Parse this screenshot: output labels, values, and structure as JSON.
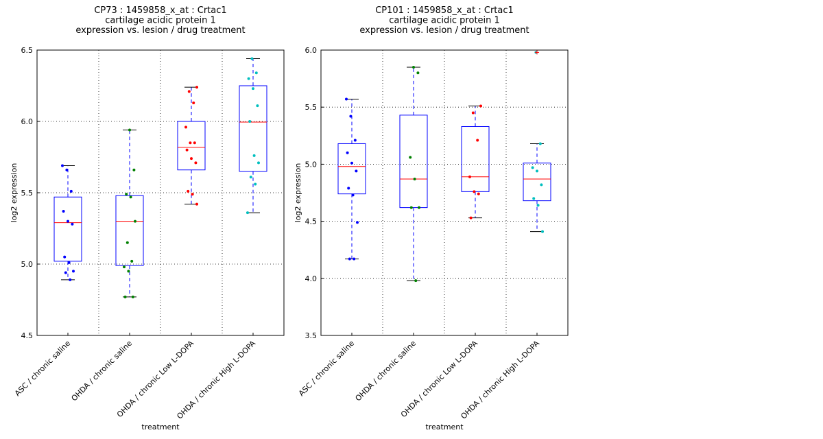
{
  "chart_data": [
    {
      "type": "box",
      "title": [
        "CP73 : 1459858_x_at : Crtac1",
        "cartilage acidic protein 1",
        "expression vs. lesion / drug treatment"
      ],
      "xlabel": "treatment",
      "ylabel": "log2 expression",
      "categories": [
        "ASC / chronic saline",
        "OHDA / chronic saline",
        "OHDA / chronic Low L-DOPA",
        "OHDA / chronic High L-DOPA"
      ],
      "ylim": [
        4.5,
        6.5
      ],
      "yticks": [
        4.5,
        {
          "value": 5,
          "label": "5.0"
        },
        5.5,
        {
          "value": 6,
          "label": "6.0"
        },
        6.5
      ],
      "grid": true,
      "box_color": "#0000ff",
      "median_color": "#ff0000",
      "boxes": [
        {
          "whisker_low": 4.89,
          "q1": 5.02,
          "median": 5.29,
          "q3": 5.47,
          "whisker_high": 5.69,
          "color": "#0000ff",
          "points": [
            5.69,
            5.66,
            5.51,
            5.37,
            5.3,
            5.28,
            5.05,
            5.01,
            4.95,
            4.94,
            4.89
          ],
          "fliers": []
        },
        {
          "whisker_low": 4.77,
          "q1": 4.99,
          "median": 5.3,
          "q3": 5.48,
          "whisker_high": 5.94,
          "color": "#008000",
          "points": [
            5.94,
            5.66,
            5.49,
            5.47,
            5.3,
            5.15,
            5.02,
            4.98,
            4.95,
            4.77,
            4.77
          ],
          "fliers": []
        },
        {
          "whisker_low": 5.42,
          "q1": 5.66,
          "median": 5.82,
          "q3": 6.0,
          "whisker_high": 6.24,
          "color": "#ff0000",
          "points": [
            6.24,
            6.21,
            6.13,
            5.96,
            5.85,
            5.85,
            5.8,
            5.74,
            5.71,
            5.51,
            5.49,
            5.42
          ],
          "fliers": []
        },
        {
          "whisker_low": 5.36,
          "q1": 5.65,
          "median": 5.995,
          "q3": 6.25,
          "whisker_high": 6.44,
          "color": "#00bfbf",
          "points": [
            6.44,
            6.34,
            6.3,
            6.23,
            6.11,
            6.0,
            5.76,
            5.71,
            5.61,
            5.56,
            5.36
          ],
          "fliers": []
        }
      ]
    },
    {
      "type": "box",
      "title": [
        "CP101 : 1459858_x_at : Crtac1",
        "cartilage acidic protein 1",
        "expression vs. lesion / drug treatment"
      ],
      "xlabel": "treatment",
      "ylabel": "log2 expression",
      "categories": [
        "ASC / chronic saline",
        "OHDA / chronic saline",
        "OHDA / chronic Low L-DOPA",
        "OHDA / chronic High L-DOPA"
      ],
      "ylim": [
        3.5,
        6.0
      ],
      "yticks": [
        3.5,
        {
          "value": 4,
          "label": "4.0"
        },
        4.5,
        {
          "value": 5,
          "label": "5.0"
        },
        5.5,
        {
          "value": 6,
          "label": "6.0"
        }
      ],
      "grid": true,
      "box_color": "#0000ff",
      "median_color": "#ff0000",
      "boxes": [
        {
          "whisker_low": 4.17,
          "q1": 4.74,
          "median": 4.98,
          "q3": 5.18,
          "whisker_high": 5.57,
          "color": "#0000ff",
          "points": [
            5.57,
            5.42,
            5.21,
            5.1,
            5.01,
            4.94,
            4.79,
            4.73,
            4.49,
            4.17,
            4.17
          ],
          "fliers": []
        },
        {
          "whisker_low": 3.98,
          "q1": 4.62,
          "median": 4.87,
          "q3": 5.43,
          "whisker_high": 5.85,
          "color": "#008000",
          "points": [
            5.85,
            5.8,
            5.06,
            4.87,
            4.62,
            4.62,
            3.98
          ],
          "fliers": []
        },
        {
          "whisker_low": 4.53,
          "q1": 4.76,
          "median": 4.89,
          "q3": 5.33,
          "whisker_high": 5.51,
          "color": "#ff0000",
          "points": [
            5.51,
            5.45,
            5.21,
            4.89,
            4.76,
            4.74,
            4.53
          ],
          "fliers": []
        },
        {
          "whisker_low": 4.41,
          "q1": 4.68,
          "median": 4.87,
          "q3": 5.01,
          "whisker_high": 5.18,
          "color": "#00bfbf",
          "points": [
            5.98,
            5.18,
            4.97,
            4.94,
            4.82,
            4.7,
            4.64,
            4.41
          ],
          "fliers": [
            5.98
          ]
        }
      ]
    }
  ]
}
